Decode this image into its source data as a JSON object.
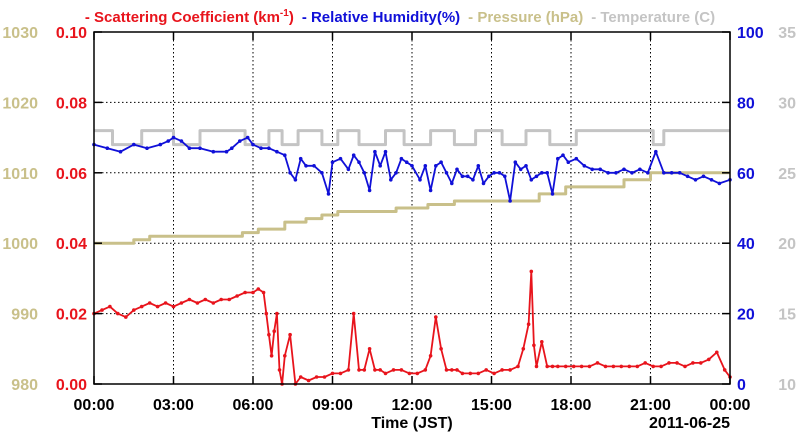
{
  "chart_data": {
    "type": "line",
    "legend": [
      {
        "label_main": "Scattering Coefficient (km",
        "label_sup": "-1",
        "label_tail": ")",
        "color": "#e8141c"
      },
      {
        "label_main": "Relative Humidity(%)",
        "color": "#1010d8"
      },
      {
        "label_main": "Pressure (hPa)",
        "color": "#c9c08a"
      },
      {
        "label_main": "Temperature (C)",
        "color": "#c4c4c4"
      }
    ],
    "legend_prefix": "-",
    "legend_placement": "top",
    "xlabel": "Time (JST)",
    "date_label": "2011-06-25",
    "x_ticks": [
      "00:00",
      "03:00",
      "06:00",
      "09:00",
      "12:00",
      "15:00",
      "18:00",
      "21:00",
      "00:00"
    ],
    "x_range_hours": [
      0,
      24
    ],
    "grid": true,
    "axes": {
      "pressure": {
        "side": "left-outer",
        "ticks": [
          "980",
          "990",
          "1000",
          "1010",
          "1020",
          "1030"
        ],
        "range": [
          980,
          1030
        ],
        "color": "#c9c08a"
      },
      "scattering": {
        "side": "left-inner",
        "ticks": [
          "0.00",
          "0.02",
          "0.04",
          "0.06",
          "0.08",
          "0.10"
        ],
        "range": [
          0,
          0.1
        ],
        "color": "#e8141c"
      },
      "humidity": {
        "side": "right-inner",
        "ticks": [
          "0",
          "20",
          "40",
          "60",
          "80",
          "100"
        ],
        "range": [
          0,
          100
        ],
        "color": "#1010d8"
      },
      "temperature": {
        "side": "right-outer",
        "ticks": [
          "10",
          "15",
          "20",
          "25",
          "30",
          "35"
        ],
        "range": [
          10,
          35
        ],
        "color": "#c4c4c4"
      }
    },
    "series": [
      {
        "name": "Temperature (C)",
        "axis": "temperature",
        "color": "#c4c4c4",
        "style": "step",
        "x": [
          0,
          0.5,
          0.7,
          1.5,
          1.8,
          2.8,
          3.0,
          3.8,
          4.0,
          5.5,
          5.7,
          6.5,
          6.6,
          7.0,
          7.1,
          7.6,
          7.7,
          8.5,
          8.6,
          9.1,
          9.2,
          9.9,
          10.0,
          10.9,
          11.0,
          11.6,
          11.7,
          12.6,
          12.7,
          13.5,
          13.6,
          14.3,
          14.4,
          15.3,
          15.4,
          16.2,
          16.3,
          17.1,
          17.2,
          18.1,
          18.2,
          21.0,
          21.1,
          21.4,
          21.5,
          24
        ],
        "y": [
          28,
          28,
          27,
          27,
          28,
          28,
          27,
          27,
          28,
          28,
          27,
          27,
          28,
          28,
          27,
          27,
          28,
          28,
          27,
          27,
          28,
          28,
          27,
          27,
          28,
          28,
          27,
          27,
          28,
          28,
          27,
          27,
          28,
          28,
          27,
          27,
          28,
          28,
          27,
          27,
          28,
          28,
          27,
          27,
          28,
          28
        ]
      },
      {
        "name": "Pressure (hPa)",
        "axis": "pressure",
        "color": "#c9c08a",
        "style": "step",
        "x": [
          0,
          1.4,
          1.5,
          2.0,
          2.1,
          5.5,
          5.6,
          6.0,
          6.2,
          7.0,
          7.2,
          7.8,
          8.0,
          8.4,
          8.6,
          9.0,
          9.2,
          11.2,
          11.4,
          12.5,
          12.6,
          13.4,
          13.6,
          16.6,
          16.8,
          17.6,
          17.8,
          19.8,
          20.0,
          20.8,
          21.0,
          24
        ],
        "y": [
          1000,
          1000,
          1000.5,
          1000.5,
          1001,
          1001,
          1001.5,
          1001.5,
          1002,
          1002,
          1003,
          1003,
          1003.5,
          1003.5,
          1004,
          1004,
          1004.5,
          1004.5,
          1005,
          1005,
          1005.5,
          1005.5,
          1006,
          1006,
          1007,
          1007,
          1008,
          1008,
          1009,
          1009,
          1010,
          1010
        ]
      },
      {
        "name": "Relative Humidity(%)",
        "axis": "humidity",
        "color": "#1010d8",
        "style": "line-markers",
        "x": [
          0,
          0.5,
          1.0,
          1.5,
          2.0,
          2.5,
          2.8,
          3.0,
          3.3,
          3.6,
          4.0,
          4.5,
          5.0,
          5.2,
          5.5,
          5.8,
          6.0,
          6.3,
          6.6,
          6.9,
          7.2,
          7.4,
          7.6,
          7.8,
          8.0,
          8.3,
          8.6,
          8.85,
          9.0,
          9.3,
          9.6,
          9.8,
          10.0,
          10.2,
          10.4,
          10.6,
          10.8,
          11.0,
          11.2,
          11.4,
          11.6,
          11.8,
          12.0,
          12.3,
          12.5,
          12.7,
          12.9,
          13.1,
          13.3,
          13.5,
          13.7,
          13.9,
          14.1,
          14.3,
          14.5,
          14.7,
          14.9,
          15.1,
          15.3,
          15.5,
          15.7,
          15.9,
          16.1,
          16.3,
          16.5,
          16.7,
          16.9,
          17.1,
          17.3,
          17.5,
          17.7,
          17.9,
          18.2,
          18.5,
          18.8,
          19.1,
          19.4,
          19.7,
          20.0,
          20.3,
          20.6,
          20.9,
          21.2,
          21.5,
          21.8,
          22.1,
          22.4,
          22.7,
          23.0,
          23.3,
          23.6,
          24
        ],
        "y": [
          68,
          67,
          66,
          68,
          67,
          68,
          69,
          70,
          69,
          67,
          67,
          66,
          66,
          67,
          69,
          70,
          68,
          67,
          67,
          66,
          65,
          60,
          58,
          64,
          62,
          62,
          60,
          54,
          63,
          64,
          61,
          65,
          63,
          60,
          55,
          66,
          62,
          66,
          58,
          60,
          64,
          63,
          62,
          58,
          62,
          55,
          62,
          63,
          60,
          57,
          61,
          59,
          59,
          58,
          62,
          57,
          59,
          60,
          60,
          59,
          52,
          63,
          61,
          62,
          58,
          59,
          60,
          60,
          54,
          64,
          65,
          63,
          64,
          62,
          61,
          61,
          60,
          60,
          61,
          60,
          61,
          60,
          66,
          60,
          60,
          60,
          59,
          58,
          59,
          58,
          57,
          58
        ]
      },
      {
        "name": "Scattering Coefficient (km-1)",
        "axis": "scattering",
        "color": "#e8141c",
        "style": "line-markers",
        "x": [
          0,
          0.3,
          0.6,
          0.9,
          1.2,
          1.5,
          1.8,
          2.1,
          2.4,
          2.7,
          3.0,
          3.3,
          3.6,
          3.9,
          4.2,
          4.5,
          4.8,
          5.1,
          5.4,
          5.7,
          6.0,
          6.2,
          6.4,
          6.5,
          6.6,
          6.7,
          6.8,
          6.9,
          7.0,
          7.1,
          7.2,
          7.4,
          7.6,
          7.8,
          8.1,
          8.4,
          8.7,
          9.0,
          9.3,
          9.6,
          9.8,
          10.0,
          10.2,
          10.4,
          10.6,
          10.8,
          11.0,
          11.3,
          11.6,
          11.9,
          12.2,
          12.5,
          12.7,
          12.9,
          13.1,
          13.3,
          13.5,
          13.7,
          13.9,
          14.2,
          14.5,
          14.8,
          15.1,
          15.4,
          15.7,
          16.0,
          16.2,
          16.4,
          16.5,
          16.6,
          16.7,
          16.9,
          17.1,
          17.3,
          17.5,
          17.8,
          18.1,
          18.4,
          18.7,
          19.0,
          19.3,
          19.6,
          19.9,
          20.2,
          20.5,
          20.8,
          21.1,
          21.4,
          21.7,
          22.0,
          22.3,
          22.6,
          22.9,
          23.2,
          23.5,
          23.8,
          24
        ],
        "y": [
          0.02,
          0.021,
          0.022,
          0.02,
          0.019,
          0.021,
          0.022,
          0.023,
          0.022,
          0.023,
          0.022,
          0.023,
          0.024,
          0.023,
          0.024,
          0.023,
          0.024,
          0.024,
          0.025,
          0.026,
          0.026,
          0.027,
          0.026,
          0.02,
          0.014,
          0.008,
          0.015,
          0.02,
          0.004,
          0.0,
          0.008,
          0.014,
          0.0,
          0.002,
          0.001,
          0.002,
          0.002,
          0.003,
          0.003,
          0.004,
          0.02,
          0.004,
          0.004,
          0.01,
          0.004,
          0.004,
          0.003,
          0.004,
          0.004,
          0.003,
          0.003,
          0.004,
          0.008,
          0.019,
          0.01,
          0.004,
          0.004,
          0.004,
          0.003,
          0.003,
          0.003,
          0.004,
          0.003,
          0.004,
          0.004,
          0.005,
          0.01,
          0.017,
          0.032,
          0.011,
          0.005,
          0.012,
          0.005,
          0.005,
          0.005,
          0.005,
          0.005,
          0.005,
          0.005,
          0.006,
          0.005,
          0.005,
          0.005,
          0.005,
          0.005,
          0.006,
          0.005,
          0.005,
          0.006,
          0.006,
          0.005,
          0.006,
          0.006,
          0.007,
          0.009,
          0.004,
          0.002
        ]
      }
    ]
  }
}
